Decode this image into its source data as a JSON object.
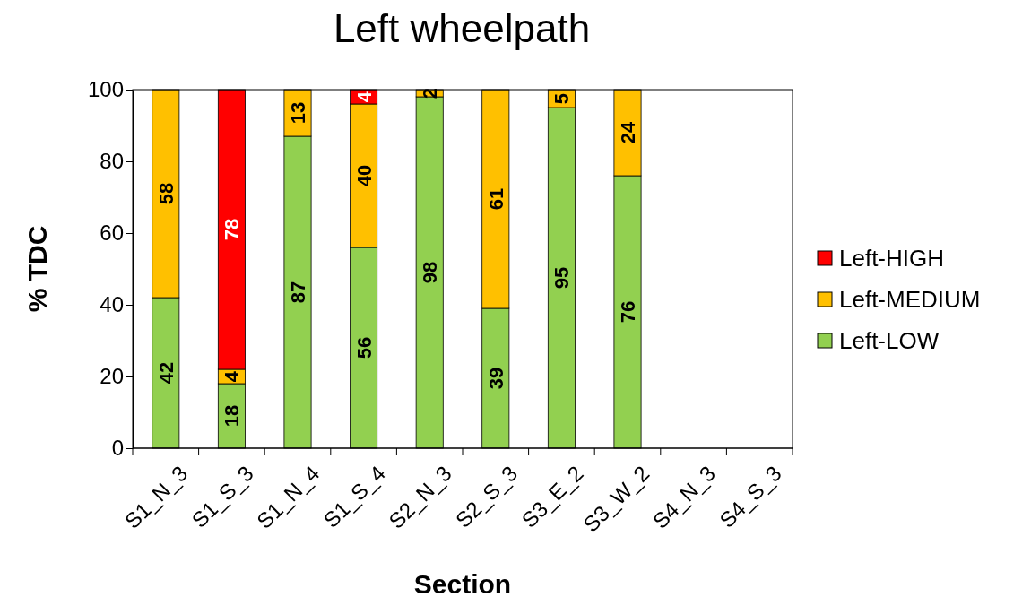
{
  "chart_data": {
    "type": "bar",
    "title": "Left wheelpath",
    "xlabel": "Section",
    "ylabel": "% TDC",
    "categories": [
      "S1_N_3",
      "S1_S_3",
      "S1_N_4",
      "S1_S_4",
      "S2_N_3",
      "S2_S_3",
      "S3_E_2",
      "S3_W_2",
      "S4_N_3",
      "S4_S_3"
    ],
    "series": [
      {
        "name": "Left-LOW",
        "color": "#92d050",
        "values": [
          42,
          18,
          87,
          56,
          98,
          39,
          95,
          76,
          null,
          null
        ]
      },
      {
        "name": "Left-MEDIUM",
        "color": "#ffc000",
        "values": [
          58,
          4,
          13,
          40,
          2,
          61,
          5,
          24,
          null,
          null
        ]
      },
      {
        "name": "Left-HIGH",
        "color": "#ff0000",
        "values": [
          null,
          78,
          null,
          4,
          null,
          null,
          null,
          null,
          null,
          null
        ]
      }
    ],
    "stacked": true,
    "ylim": [
      0,
      100
    ],
    "yticks": [
      0,
      20,
      40,
      60,
      80,
      100
    ],
    "data_labels": true,
    "legend": "right",
    "grid": false
  }
}
